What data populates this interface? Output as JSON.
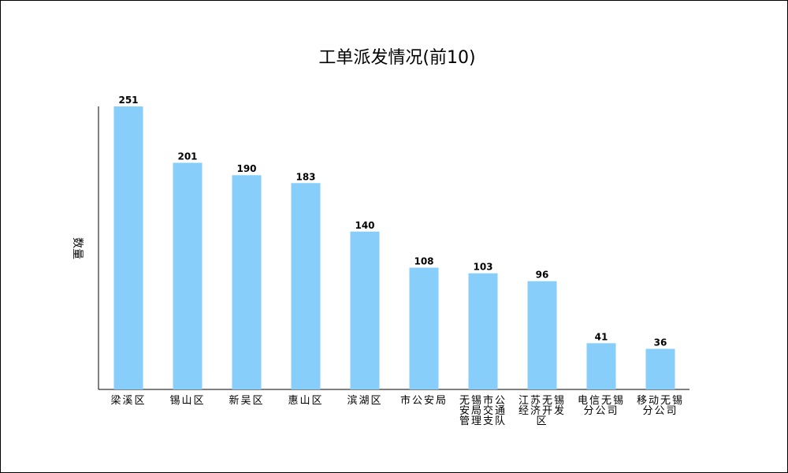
{
  "chart_data": {
    "type": "bar",
    "title": "工单派发情况(前10)",
    "xlabel": "",
    "ylabel": "数量",
    "categories": [
      [
        "梁溪区"
      ],
      [
        "锡山区"
      ],
      [
        "新吴区"
      ],
      [
        "惠山区"
      ],
      [
        "滨湖区"
      ],
      [
        "市公安局"
      ],
      [
        "无锡市公",
        "安局交通",
        "管理支队"
      ],
      [
        "江苏无锡",
        "经济开发",
        "区"
      ],
      [
        "电信无锡",
        "分公司"
      ],
      [
        "移动无锡",
        "分公司"
      ]
    ],
    "values": [
      251,
      201,
      190,
      183,
      140,
      108,
      103,
      96,
      41,
      36
    ],
    "ylim": [
      0,
      251
    ],
    "bar_color": "#87CEFA",
    "grid": false,
    "show_y_ticks": false
  }
}
